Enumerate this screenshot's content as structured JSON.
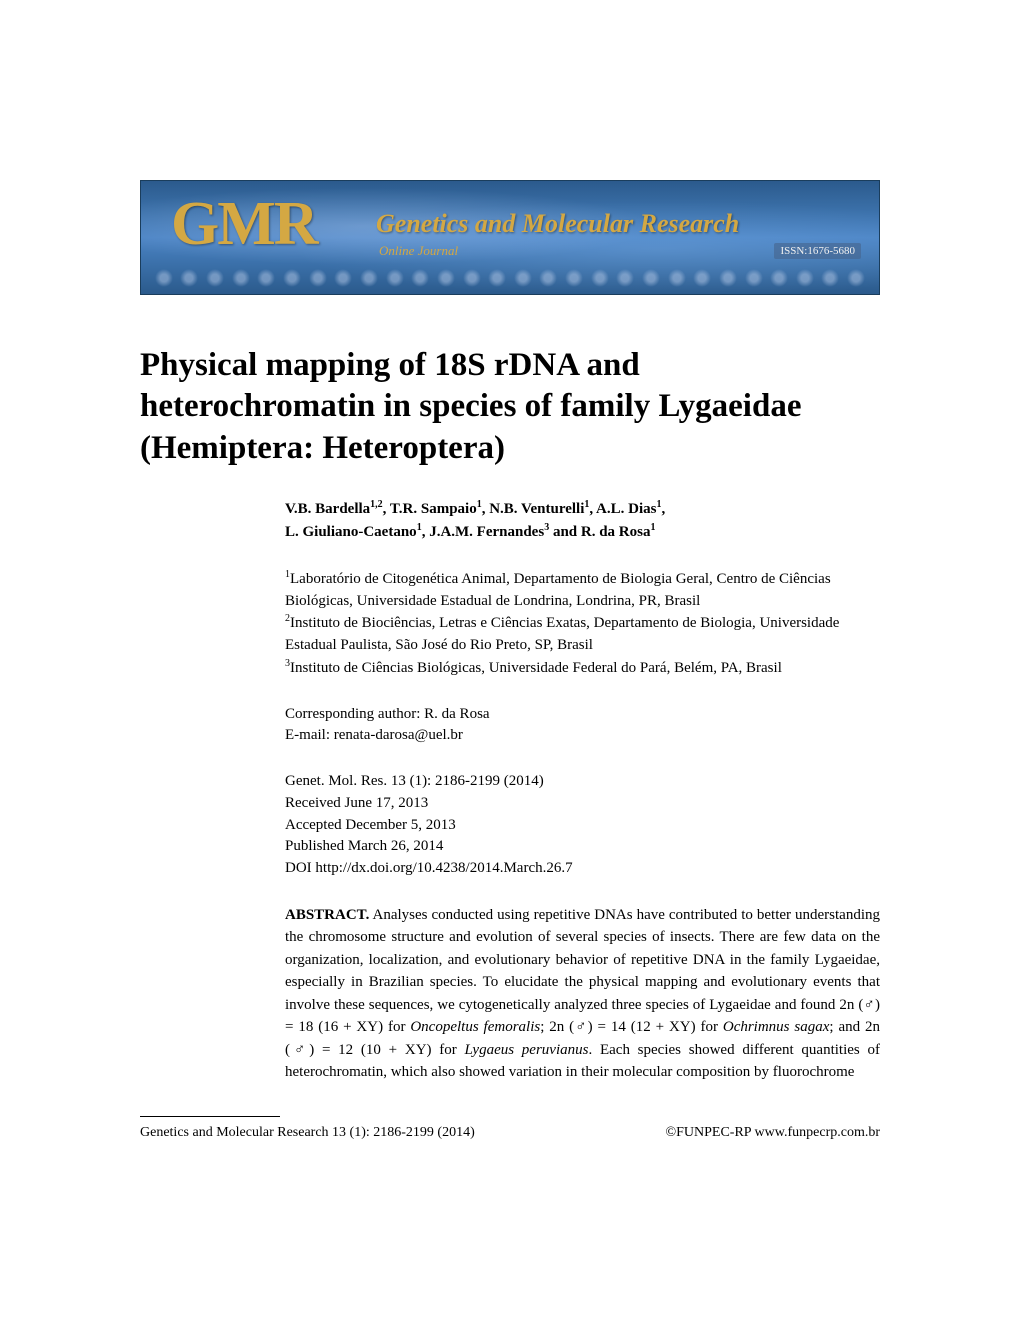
{
  "banner": {
    "acronym": "GMR",
    "journal_name": "Genetics and Molecular Research",
    "subtitle": "Online Journal",
    "issn": "ISSN:1676-5680",
    "bg_gradient_top": "#2b5a8c",
    "bg_gradient_mid": "#4a83c4",
    "text_color": "#d4a843"
  },
  "article": {
    "title": "Physical mapping of 18S rDNA and heterochromatin in species of family Lygaeidae (Hemiptera: Heteroptera)",
    "title_fontsize": 33,
    "authors_line1": "V.B. Bardella",
    "authors_sup1": "1,2",
    "authors_line1b": ", T.R. Sampaio",
    "authors_sup2": "1",
    "authors_line1c": ", N.B. Venturelli",
    "authors_sup3": "1",
    "authors_line1d": ", A.L. Dias",
    "authors_sup4": "1",
    "authors_line1e": ",",
    "authors_line2": "L. Giuliano-Caetano",
    "authors_sup5": "1",
    "authors_line2b": ", J.A.M. Fernandes",
    "authors_sup6": "3",
    "authors_line2c": " and R. da Rosa",
    "authors_sup7": "1",
    "aff1_sup": "1",
    "aff1": "Laboratório de Citogenética Animal, Departamento de Biologia Geral, Centro de Ciências Biológicas, Universidade Estadual de Londrina, Londrina, PR, Brasil",
    "aff2_sup": "2",
    "aff2": "Instituto de Biociências, Letras e Ciências Exatas, Departamento de Biologia, Universidade Estadual Paulista, São José do Rio Preto, SP, Brasil",
    "aff3_sup": "3",
    "aff3": "Instituto de Ciências Biológicas, Universidade Federal do Pará, Belém, PA, Brasil",
    "corresponding_label": "Corresponding author: R. da Rosa",
    "corresponding_email": "E-mail: renata-darosa@uel.br",
    "citation": "Genet. Mol. Res. 13 (1): 2186-2199 (2014)",
    "received": "Received June 17, 2013",
    "accepted": "Accepted December 5, 2013",
    "published": "Published March 26, 2014",
    "doi": "DOI http://dx.doi.org/10.4238/2014.March.26.7",
    "abstract_label": "ABSTRACT.",
    "abstract_p1": " Analyses conducted using repetitive DNAs have contributed to better understanding the chromosome structure and evolution of several species of insects. There are few data on the organization, localization, and evolutionary behavior of repetitive DNA in the family Lygaeidae, especially in Brazilian species. To elucidate the physical mapping and evolutionary events that involve these sequences, we cytogenetically analyzed three species of Lygaeidae and found 2n (♂) = 18 (16 + XY) for ",
    "species1": "Oncopeltus femoralis",
    "abstract_p2": "; 2n (♂) = 14 (12 + XY) for ",
    "species2": "Ochrimnus sagax",
    "abstract_p3": "; and 2n (♂) = 12 (10 + XY) for ",
    "species3": "Lygaeus peruvianus",
    "abstract_p4": ". Each species showed different quantities of heterochromatin, which also showed variation in their molecular composition by fluorochrome"
  },
  "footer": {
    "citation": "Genetics and Molecular Research 13 (1): 2186-2199 (2014)",
    "copyright": "©FUNPEC-RP www.funpecrp.com.br"
  },
  "colors": {
    "text": "#000000",
    "background": "#ffffff"
  }
}
